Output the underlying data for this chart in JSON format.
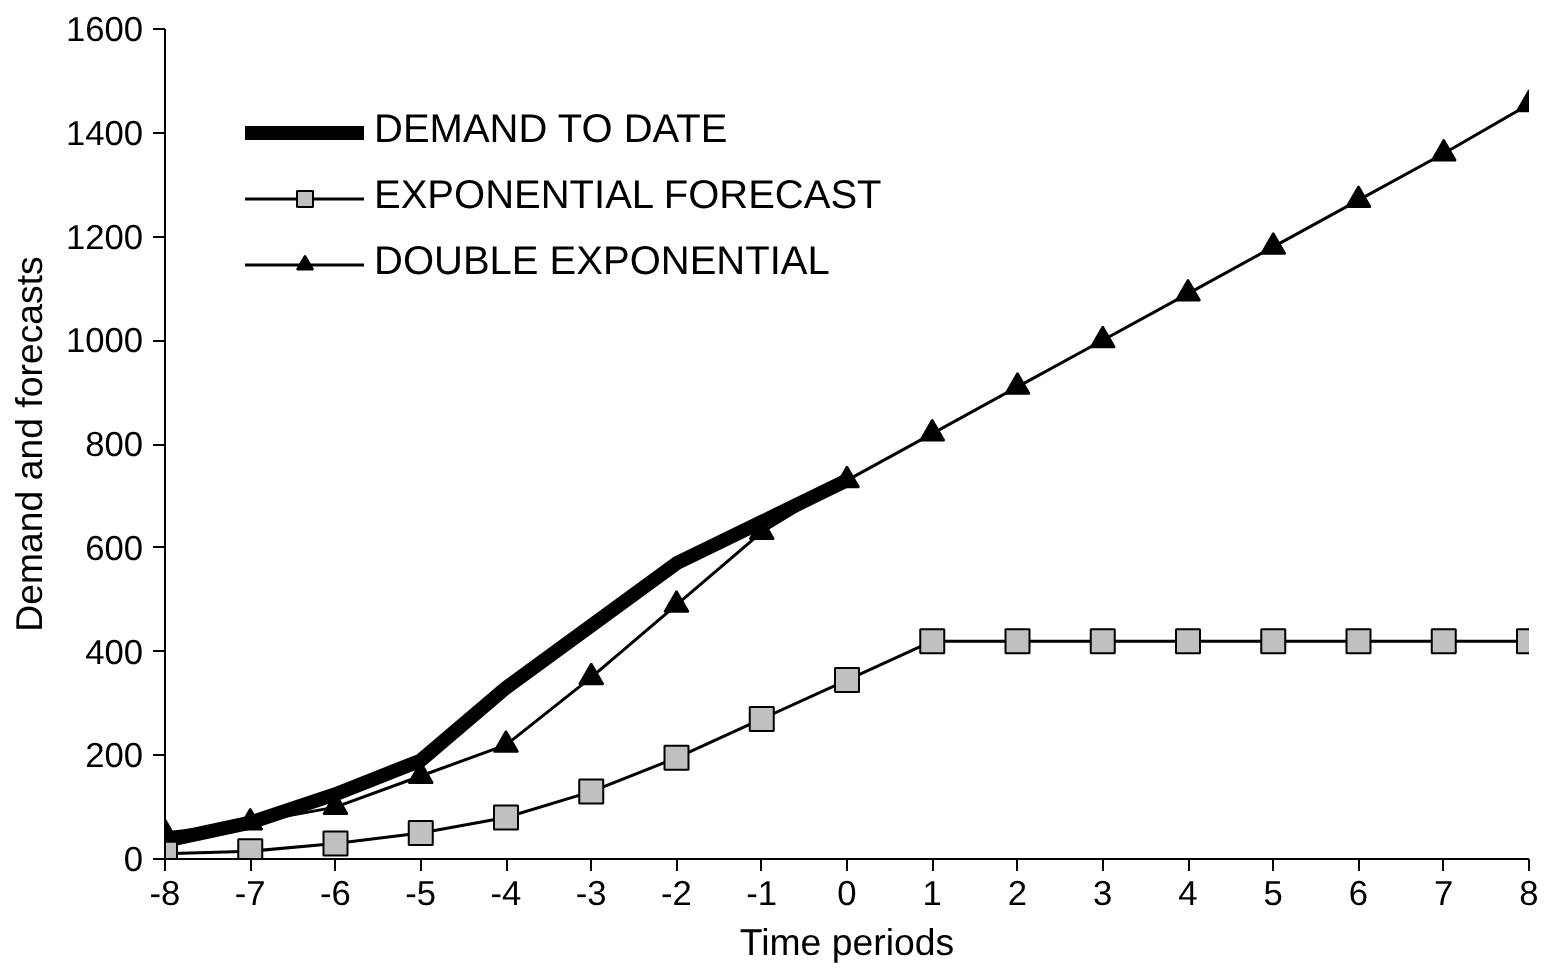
{
  "chart_data": {
    "type": "line",
    "xlabel": "Time periods",
    "ylabel": "Demand and forecasts",
    "xlim": [
      -8,
      8
    ],
    "xticks": [
      -8,
      -7,
      -6,
      -5,
      -4,
      -3,
      -2,
      -1,
      0,
      1,
      2,
      3,
      4,
      5,
      6,
      7,
      8
    ],
    "ylim": [
      0,
      1600
    ],
    "yticks": [
      0,
      200,
      400,
      600,
      800,
      1000,
      1200,
      1400,
      1600
    ],
    "grid": false,
    "legend": "top left",
    "series": [
      {
        "name": "DEMAND TO DATE",
        "color": "#000000",
        "marker": "none",
        "x": [
          -8,
          -7,
          -6,
          -5,
          -4,
          -3,
          -2,
          -1,
          0
        ],
        "values": [
          35,
          70,
          125,
          190,
          330,
          450,
          570,
          650,
          730
        ]
      },
      {
        "name": "EXPONENTIAL FORECAST",
        "color": "#000000",
        "marker": "square",
        "x": [
          -8,
          -7,
          -6,
          -5,
          -4,
          -3,
          -2,
          -1,
          0,
          1,
          2,
          3,
          4,
          5,
          6,
          7,
          8
        ],
        "values": [
          10,
          15,
          30,
          50,
          80,
          130,
          195,
          270,
          345,
          420,
          420,
          420,
          420,
          420,
          420,
          420,
          420
        ]
      },
      {
        "name": "DOUBLE EXPONENTIAL",
        "color": "#000000",
        "marker": "triangle",
        "x": [
          -8,
          -7,
          -6,
          -5,
          -4,
          -3,
          -2,
          -1,
          0,
          1,
          2,
          3,
          4,
          5,
          6,
          7,
          8
        ],
        "values": [
          50,
          70,
          100,
          160,
          220,
          350,
          490,
          630,
          730,
          820,
          910,
          1000,
          1090,
          1180,
          1270,
          1360,
          1455
        ]
      }
    ]
  }
}
